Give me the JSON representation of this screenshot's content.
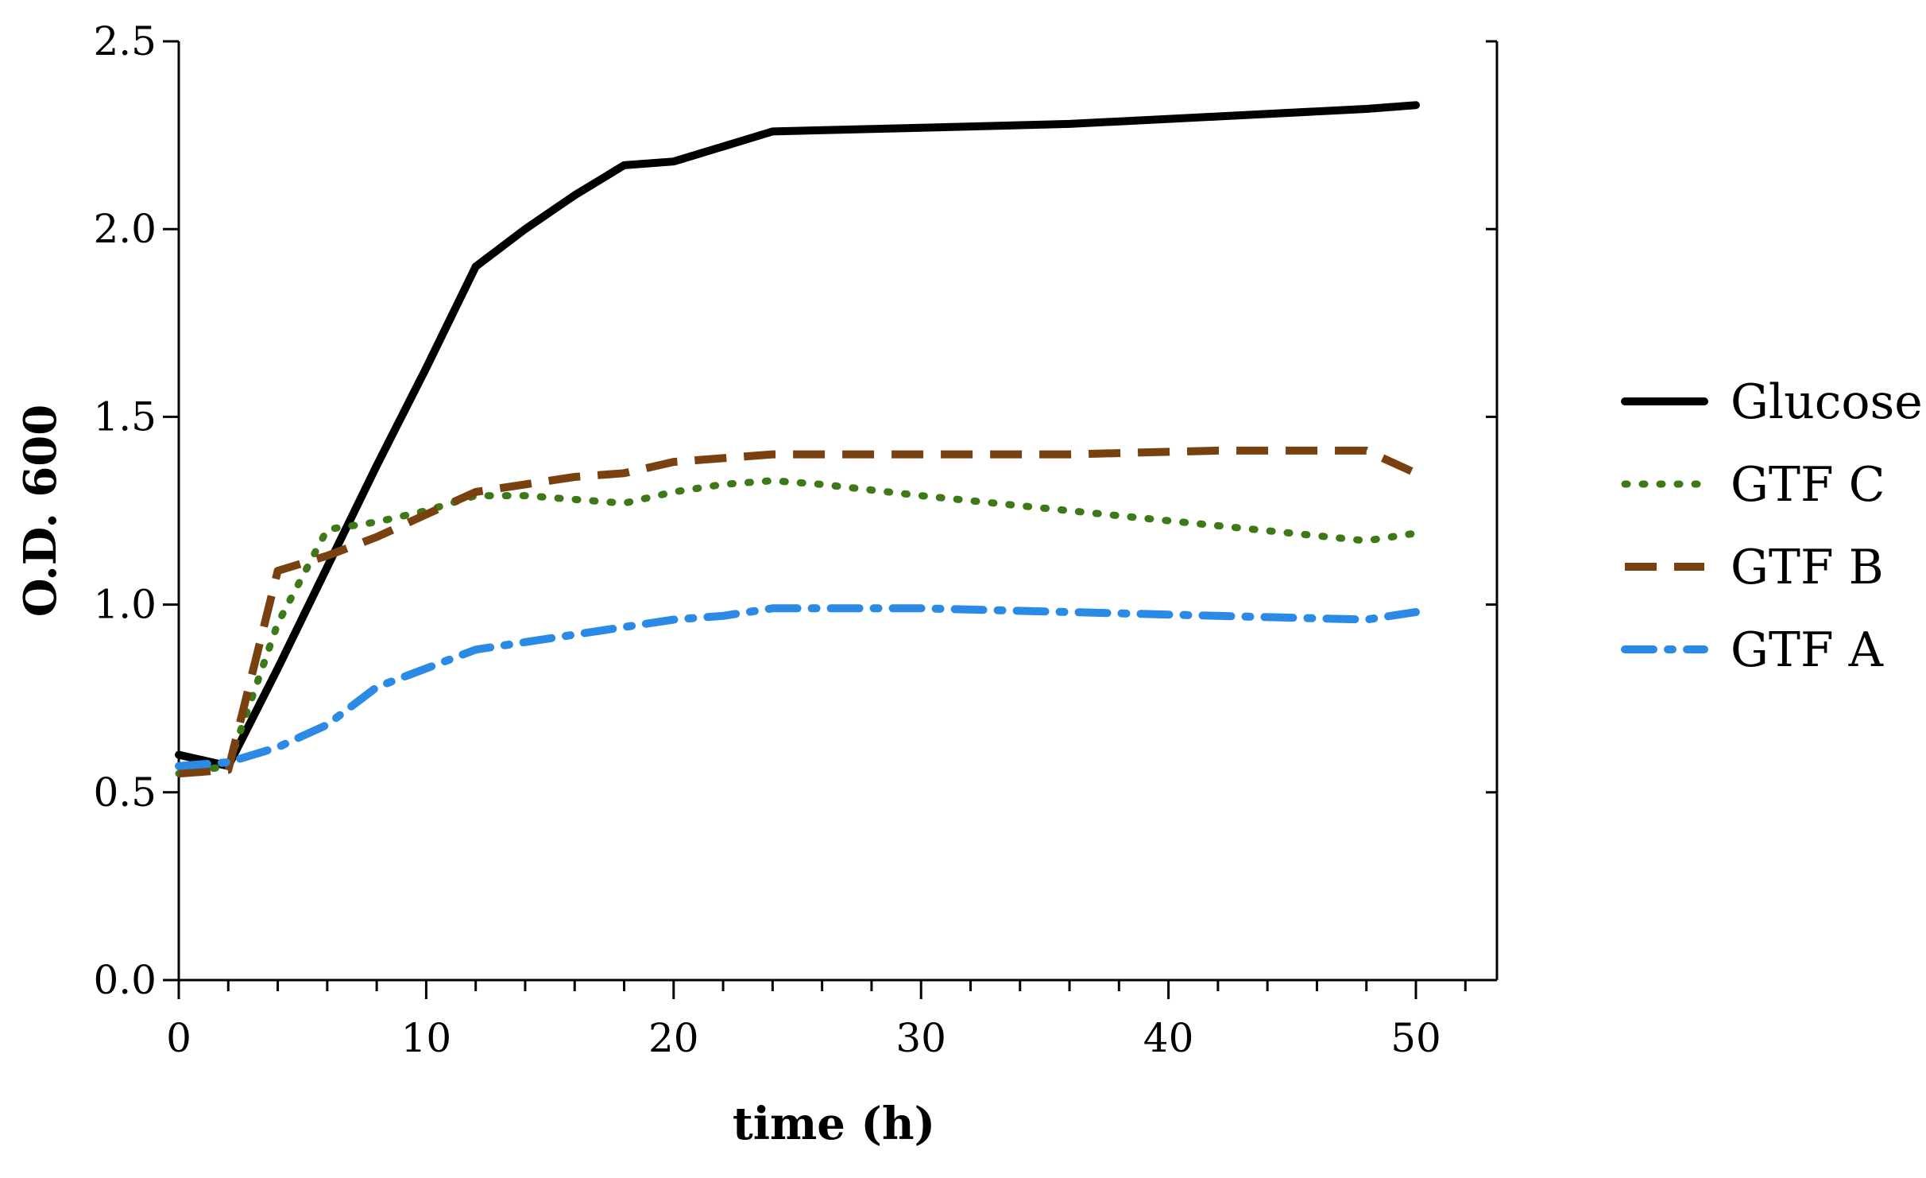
{
  "chart_data": {
    "type": "line",
    "title": "",
    "xlabel": "time (h)",
    "ylabel": "O.D. 600",
    "xlim": [
      0,
      53
    ],
    "ylim": [
      0,
      2.5
    ],
    "x_ticks": [
      0,
      10,
      20,
      30,
      40,
      50
    ],
    "x_tick_labels": [
      "0",
      "10",
      "20",
      "30",
      "40",
      "50"
    ],
    "x_minor_step": 2,
    "y_ticks": [
      0,
      0.5,
      1.0,
      1.5,
      2.0,
      2.5
    ],
    "y_tick_labels": [
      "0.0",
      "0.5",
      "1.0",
      "1.5",
      "2.0",
      "2.5"
    ],
    "grid": false,
    "legend_position": "right",
    "series": [
      {
        "name": "Glucose",
        "color": "#000000",
        "style": "solid",
        "x": [
          0,
          2,
          4,
          6,
          8,
          10,
          12,
          14,
          16,
          18,
          20,
          22,
          24,
          30,
          36,
          42,
          48,
          50
        ],
        "y": [
          0.6,
          0.57,
          0.83,
          1.1,
          1.37,
          1.63,
          1.9,
          2.0,
          2.09,
          2.17,
          2.18,
          2.22,
          2.26,
          2.27,
          2.28,
          2.3,
          2.32,
          2.33
        ]
      },
      {
        "name": "GTF C",
        "color": "#3d7a17",
        "style": "dotted",
        "x": [
          0,
          2,
          4,
          6,
          8,
          10,
          12,
          14,
          16,
          18,
          20,
          22,
          24,
          26,
          30,
          36,
          42,
          48,
          50
        ],
        "y": [
          0.55,
          0.57,
          0.95,
          1.2,
          1.22,
          1.25,
          1.29,
          1.29,
          1.28,
          1.27,
          1.3,
          1.32,
          1.33,
          1.32,
          1.29,
          1.25,
          1.21,
          1.17,
          1.19
        ]
      },
      {
        "name": "GTF B",
        "color": "#7a4110",
        "style": "dashed",
        "x": [
          0,
          2,
          4,
          6,
          8,
          10,
          12,
          14,
          16,
          18,
          20,
          22,
          24,
          30,
          36,
          42,
          48,
          50
        ],
        "y": [
          0.55,
          0.56,
          1.09,
          1.13,
          1.18,
          1.24,
          1.3,
          1.32,
          1.34,
          1.35,
          1.38,
          1.39,
          1.4,
          1.4,
          1.4,
          1.41,
          1.41,
          1.35
        ]
      },
      {
        "name": "GTF A",
        "color": "#2a8ae6",
        "style": "dashdot",
        "x": [
          0,
          2,
          4,
          6,
          8,
          10,
          12,
          14,
          16,
          18,
          20,
          22,
          24,
          30,
          36,
          42,
          48,
          50
        ],
        "y": [
          0.57,
          0.58,
          0.62,
          0.68,
          0.78,
          0.83,
          0.88,
          0.9,
          0.92,
          0.94,
          0.96,
          0.97,
          0.99,
          0.99,
          0.98,
          0.97,
          0.96,
          0.98
        ]
      }
    ]
  }
}
